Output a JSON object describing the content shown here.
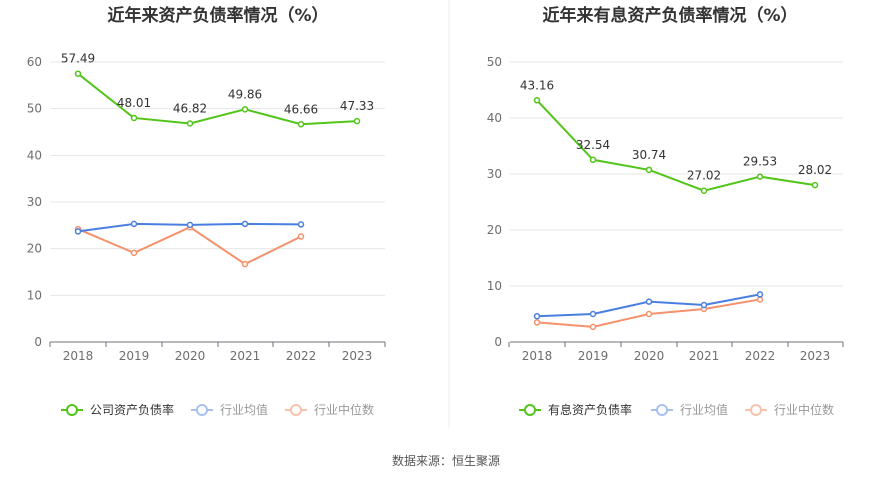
{
  "chart_data": [
    {
      "type": "line",
      "title": "近年来资产负债率情况（%）",
      "categories": [
        "2018",
        "2019",
        "2020",
        "2021",
        "2022",
        "2023"
      ],
      "ylim": [
        0,
        60
      ],
      "yticks": [
        0,
        10,
        20,
        30,
        40,
        50,
        60
      ],
      "grid": true,
      "legend_position": "bottom",
      "series": [
        {
          "name": "公司资产负债率",
          "color": "#52c41a",
          "values": [
            57.49,
            48.01,
            46.82,
            49.86,
            46.66,
            47.33
          ],
          "labels": [
            "57.49",
            "48.01",
            "46.82",
            "49.86",
            "46.66",
            "47.33"
          ]
        },
        {
          "name": "行业均值",
          "color": "#4a7fe0",
          "values": [
            23.7,
            25.3,
            25.1,
            25.3,
            25.2,
            null
          ]
        },
        {
          "name": "行业中位数",
          "color": "#f5916b",
          "values": [
            24.2,
            19.1,
            24.6,
            16.7,
            22.6,
            null
          ]
        }
      ]
    },
    {
      "type": "line",
      "title": "近年来有息资产负债率情况（%）",
      "categories": [
        "2018",
        "2019",
        "2020",
        "2021",
        "2022",
        "2023"
      ],
      "ylim": [
        0,
        50
      ],
      "yticks": [
        0,
        10,
        20,
        30,
        40,
        50
      ],
      "grid": true,
      "legend_position": "bottom",
      "series": [
        {
          "name": "有息资产负债率",
          "color": "#52c41a",
          "values": [
            43.16,
            32.54,
            30.74,
            27.02,
            29.53,
            28.02
          ],
          "labels": [
            "43.16",
            "32.54",
            "30.74",
            "27.02",
            "29.53",
            "28.02"
          ]
        },
        {
          "name": "行业均值",
          "color": "#4a7fe0",
          "values": [
            4.6,
            5.0,
            7.2,
            6.6,
            8.5,
            null
          ]
        },
        {
          "name": "行业中位数",
          "color": "#f5916b",
          "values": [
            3.5,
            2.7,
            5.0,
            5.9,
            7.6,
            null
          ]
        }
      ]
    }
  ],
  "source": "数据来源：恒生聚源",
  "colors": {
    "divider": "#eeeeee",
    "axis": "#6e7079",
    "grid": "#e6e6e6"
  }
}
